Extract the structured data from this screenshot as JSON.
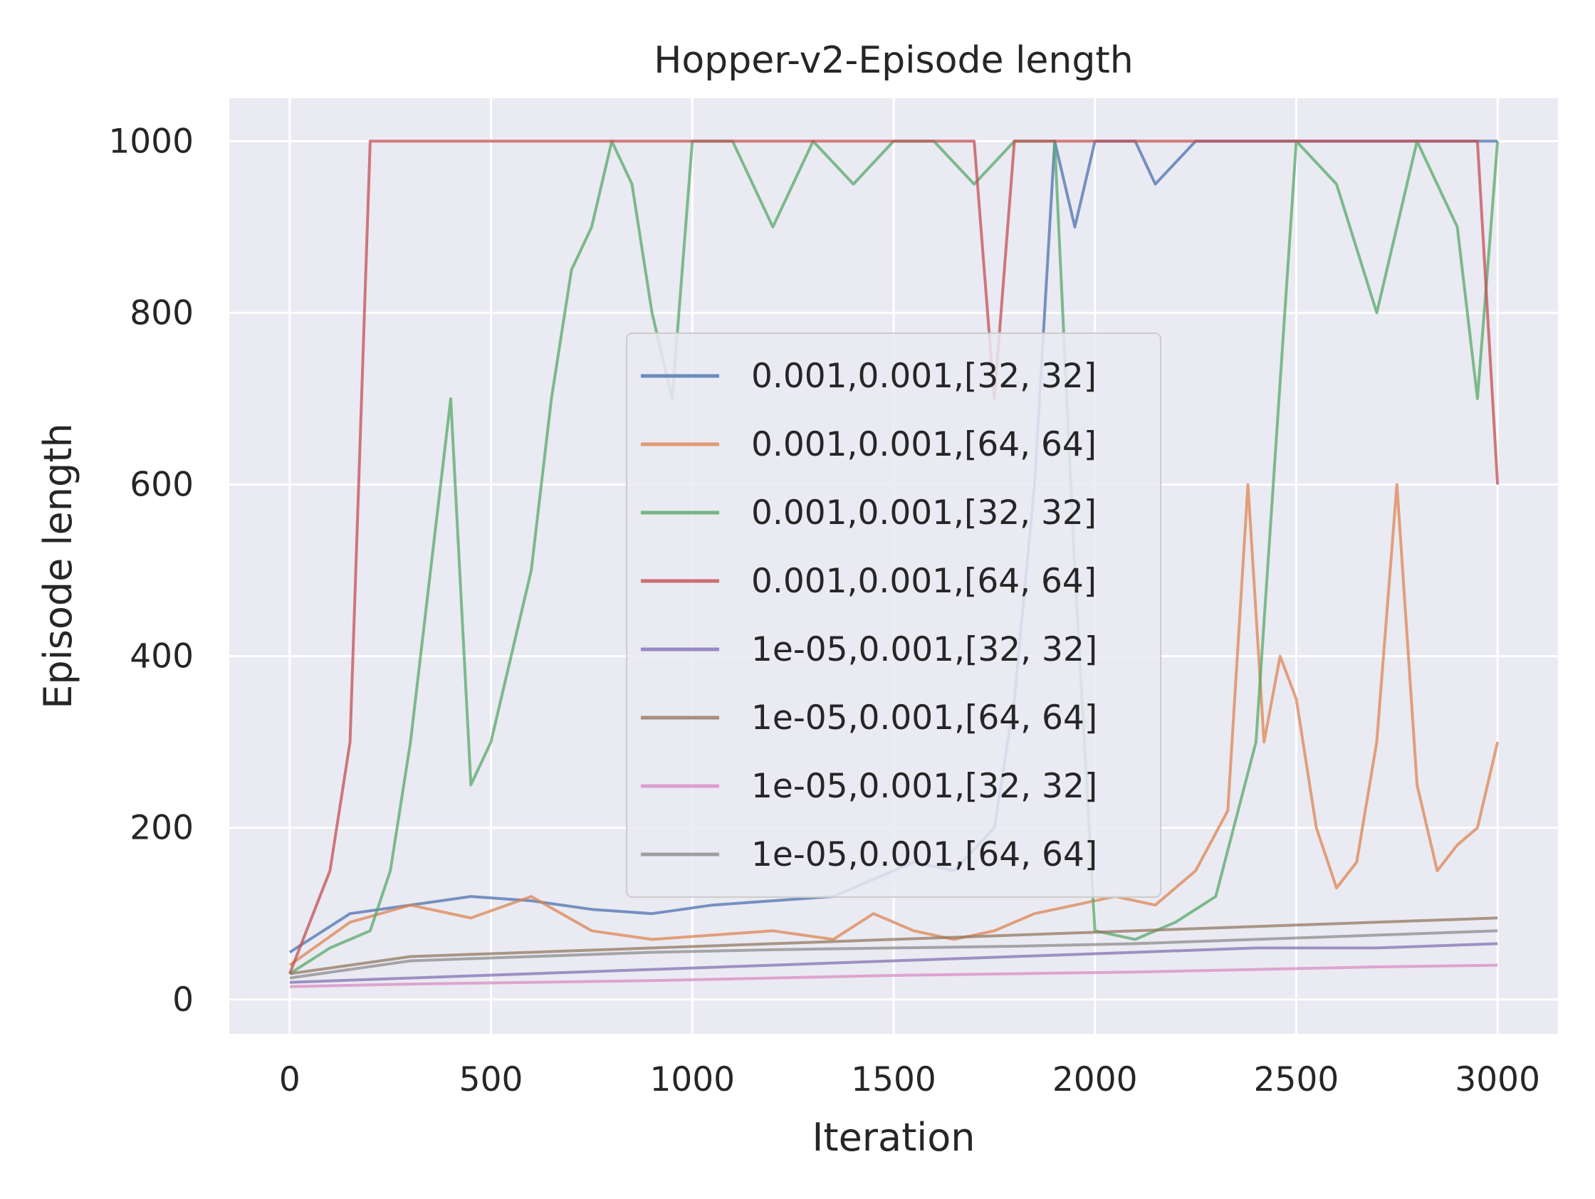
{
  "chart_data": {
    "type": "line",
    "title": "Hopper-v2-Episode length",
    "xlabel": "Iteration",
    "ylabel": "Episode length",
    "xlim": [
      -150,
      3150
    ],
    "ylim": [
      -40,
      1050
    ],
    "xticks": [
      0,
      500,
      1000,
      1500,
      2000,
      2500,
      3000
    ],
    "yticks": [
      0,
      200,
      400,
      600,
      800,
      1000
    ],
    "grid": true,
    "legend_position": "center",
    "series": [
      {
        "name": "0.001,0.001,[32, 32]",
        "color": "#4C72B0",
        "x": [
          0,
          150,
          300,
          450,
          600,
          750,
          900,
          1050,
          1200,
          1350,
          1450,
          1550,
          1650,
          1750,
          1800,
          1850,
          1900,
          1950,
          2000,
          2050,
          2100,
          2150,
          2250,
          2350,
          2450,
          2550,
          2650,
          2750,
          2850,
          2950,
          3000
        ],
        "y": [
          55,
          100,
          110,
          120,
          115,
          105,
          100,
          110,
          115,
          120,
          140,
          160,
          150,
          200,
          350,
          600,
          1000,
          900,
          1000,
          1000,
          1000,
          950,
          1000,
          1000,
          1000,
          1000,
          1000,
          1000,
          1000,
          1000,
          1000
        ]
      },
      {
        "name": "0.001,0.001,[64, 64]",
        "color": "#DD8452",
        "x": [
          0,
          150,
          300,
          450,
          600,
          750,
          900,
          1050,
          1200,
          1350,
          1450,
          1550,
          1650,
          1750,
          1850,
          1950,
          2050,
          2150,
          2250,
          2330,
          2380,
          2420,
          2460,
          2500,
          2550,
          2600,
          2650,
          2700,
          2750,
          2800,
          2850,
          2900,
          2950,
          3000
        ],
        "y": [
          40,
          90,
          110,
          95,
          120,
          80,
          70,
          75,
          80,
          70,
          100,
          80,
          70,
          80,
          100,
          110,
          120,
          110,
          150,
          220,
          600,
          300,
          400,
          350,
          200,
          130,
          160,
          300,
          600,
          250,
          150,
          180,
          200,
          300
        ]
      },
      {
        "name": "0.001,0.001,[32, 32]",
        "color": "#55A868",
        "x": [
          0,
          100,
          200,
          250,
          300,
          350,
          400,
          450,
          500,
          550,
          600,
          650,
          700,
          750,
          800,
          850,
          900,
          950,
          1000,
          1100,
          1200,
          1300,
          1400,
          1500,
          1600,
          1700,
          1800,
          1900,
          1950,
          2000,
          2100,
          2200,
          2300,
          2400,
          2500,
          2600,
          2700,
          2800,
          2900,
          2950,
          3000
        ],
        "y": [
          30,
          60,
          80,
          150,
          300,
          500,
          700,
          250,
          300,
          400,
          500,
          700,
          850,
          900,
          1000,
          950,
          800,
          700,
          1000,
          1000,
          900,
          1000,
          950,
          1000,
          1000,
          950,
          1000,
          1000,
          500,
          80,
          70,
          90,
          120,
          300,
          1000,
          950,
          800,
          1000,
          900,
          700,
          1000
        ]
      },
      {
        "name": "0.001,0.001,[64, 64]",
        "color": "#C44E52",
        "x": [
          0,
          50,
          100,
          150,
          200,
          250,
          300,
          350,
          400,
          500,
          600,
          700,
          800,
          900,
          1000,
          1100,
          1200,
          1300,
          1400,
          1500,
          1600,
          1700,
          1750,
          1800,
          1900,
          2000,
          2100,
          2200,
          2300,
          2400,
          2500,
          2600,
          2700,
          2800,
          2900,
          2950,
          3000
        ],
        "y": [
          30,
          90,
          150,
          300,
          1000,
          1000,
          1000,
          1000,
          1000,
          1000,
          1000,
          1000,
          1000,
          1000,
          1000,
          1000,
          1000,
          1000,
          1000,
          1000,
          1000,
          1000,
          700,
          1000,
          1000,
          1000,
          1000,
          1000,
          1000,
          1000,
          1000,
          1000,
          1000,
          1000,
          1000,
          1000,
          600
        ]
      },
      {
        "name": "1e-05,0.001,[32, 32]",
        "color": "#8172B3",
        "x": [
          0,
          300,
          600,
          900,
          1200,
          1500,
          1800,
          2100,
          2400,
          2700,
          3000
        ],
        "y": [
          20,
          25,
          30,
          35,
          40,
          45,
          50,
          55,
          60,
          60,
          65
        ]
      },
      {
        "name": "1e-05,0.001,[64, 64]",
        "color": "#937860",
        "x": [
          0,
          300,
          600,
          900,
          1200,
          1500,
          1800,
          2100,
          2400,
          2700,
          3000
        ],
        "y": [
          30,
          50,
          55,
          60,
          65,
          70,
          75,
          80,
          85,
          90,
          95
        ]
      },
      {
        "name": "1e-05,0.001,[32, 32]",
        "color": "#DA8BC3",
        "x": [
          0,
          300,
          600,
          900,
          1200,
          1500,
          1800,
          2100,
          2400,
          2700,
          3000
        ],
        "y": [
          15,
          18,
          20,
          22,
          25,
          28,
          30,
          32,
          35,
          38,
          40
        ]
      },
      {
        "name": "1e-05,0.001,[64, 64]",
        "color": "#8C8C8C",
        "x": [
          0,
          300,
          600,
          900,
          1200,
          1500,
          1800,
          2100,
          2400,
          2700,
          3000
        ],
        "y": [
          25,
          45,
          50,
          55,
          58,
          60,
          62,
          65,
          70,
          75,
          80
        ]
      }
    ]
  }
}
